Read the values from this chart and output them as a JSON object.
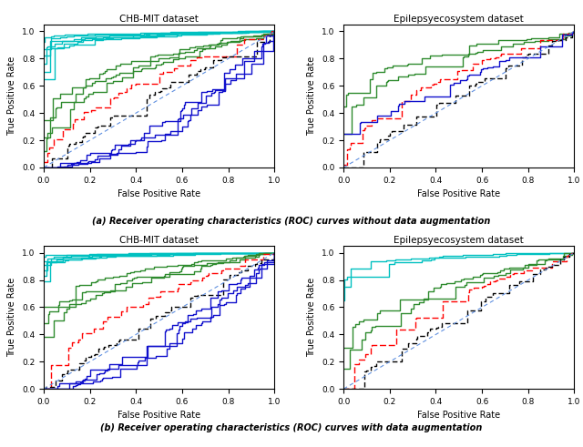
{
  "titles": [
    [
      "CHB-MIT dataset",
      "Epilepsyecosystem dataset"
    ],
    [
      "CHB-MIT dataset",
      "Epilepsyecosystem dataset"
    ]
  ],
  "caption_a": "(a) Receiver operating characteristics (ROC) curves without data augmentation",
  "caption_b": "(b) Receiver operating characteristics (ROC) curves with data augmentation",
  "xlabel": "False Positive Rate",
  "ylabel": "True Positive Rate",
  "cyan": "#00C0C0",
  "green": "#2E8B2E",
  "red": "#FF0000",
  "black": "#000000",
  "blue": "#1010CC",
  "blue_dot": "#6090E0"
}
